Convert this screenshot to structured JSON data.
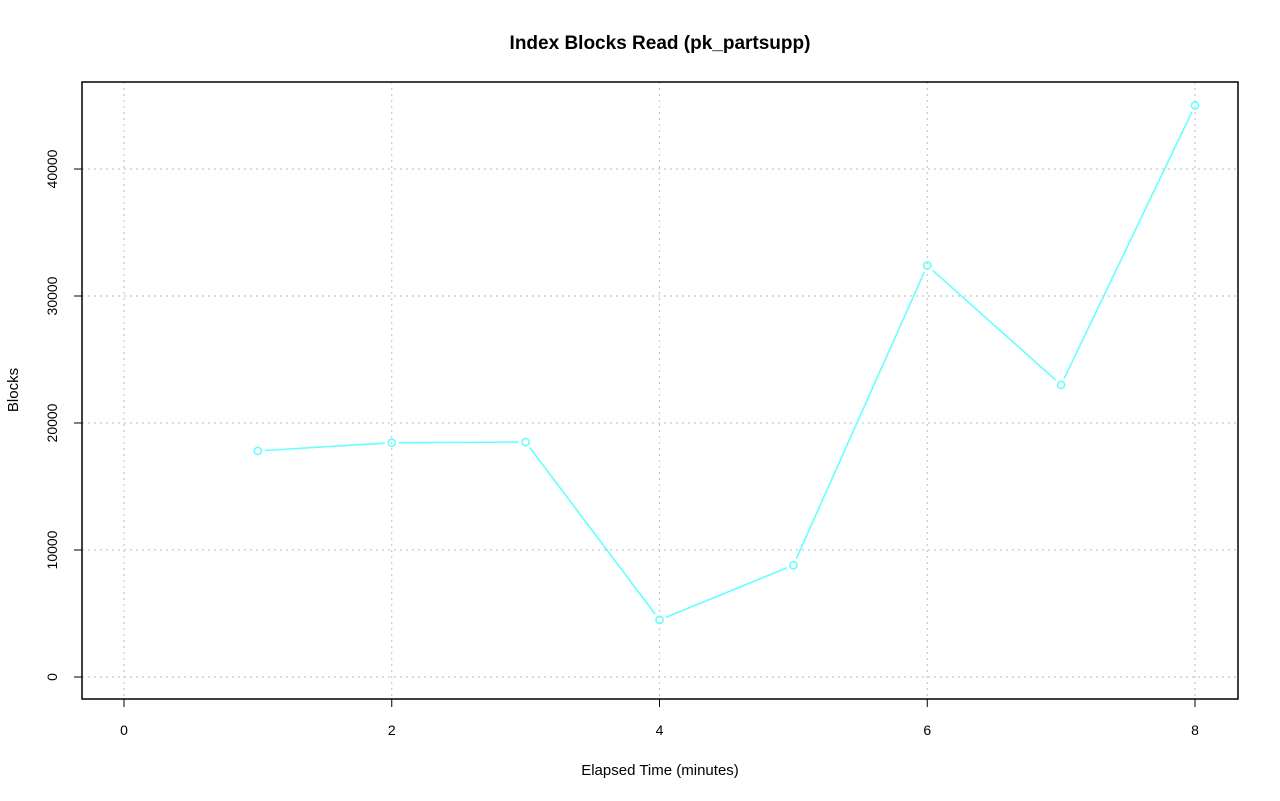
{
  "chart_data": {
    "type": "line",
    "title": "Index Blocks Read (pk_partsupp)",
    "xlabel": "Elapsed Time (minutes)",
    "ylabel": "Blocks",
    "xlim": [
      0,
      8
    ],
    "ylim": [
      0,
      45000
    ],
    "xticks": [
      0,
      2,
      4,
      6,
      8
    ],
    "yticks": [
      0,
      10000,
      20000,
      30000,
      40000
    ],
    "grid": true,
    "series": [
      {
        "color": "#66ffff",
        "x": [
          1,
          2,
          3,
          4,
          5,
          6,
          7,
          8
        ],
        "y": [
          17800,
          18450,
          18500,
          4500,
          8800,
          32400,
          23000,
          45000
        ]
      }
    ]
  }
}
